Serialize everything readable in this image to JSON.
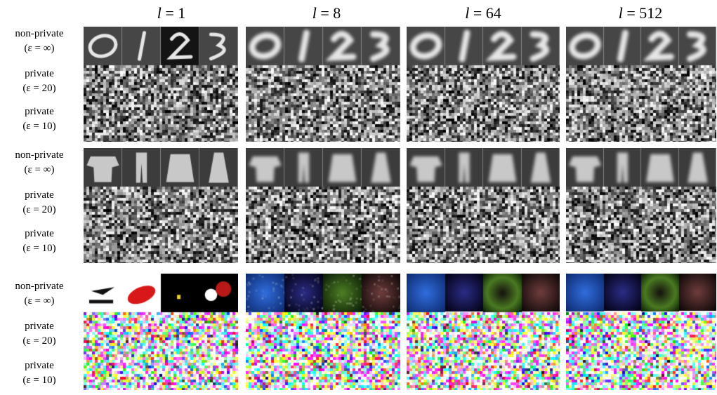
{
  "columns": [
    {
      "var": "l",
      "eq": "=",
      "val": "1"
    },
    {
      "var": "l",
      "eq": "=",
      "val": "8"
    },
    {
      "var": "l",
      "eq": "=",
      "val": "64"
    },
    {
      "var": "l",
      "eq": "=",
      "val": "512"
    }
  ],
  "blocks": [
    {
      "dataset_hint": "mnist",
      "rows": [
        {
          "title": "non-private",
          "eps": "(ε = ∞)"
        },
        {
          "title": "private",
          "eps": "(ε = 20)"
        },
        {
          "title": "private",
          "eps": "(ε = 10)"
        }
      ]
    },
    {
      "dataset_hint": "fashion",
      "rows": [
        {
          "title": "non-private",
          "eps": "(ε = ∞)"
        },
        {
          "title": "private",
          "eps": "(ε = 20)"
        },
        {
          "title": "private",
          "eps": "(ε = 10)"
        }
      ]
    },
    {
      "dataset_hint": "cifar",
      "rows": [
        {
          "title": "non-private",
          "eps": "(ε = ∞)"
        },
        {
          "title": "private",
          "eps": "(ε = 20)"
        },
        {
          "title": "private",
          "eps": "(ε = 10)"
        }
      ]
    }
  ],
  "colors": {
    "background": "#ffffff",
    "cifar_blue": "#2f6ad8",
    "cifar_red": "#d81818",
    "cifar_green": "#4a7a22"
  }
}
